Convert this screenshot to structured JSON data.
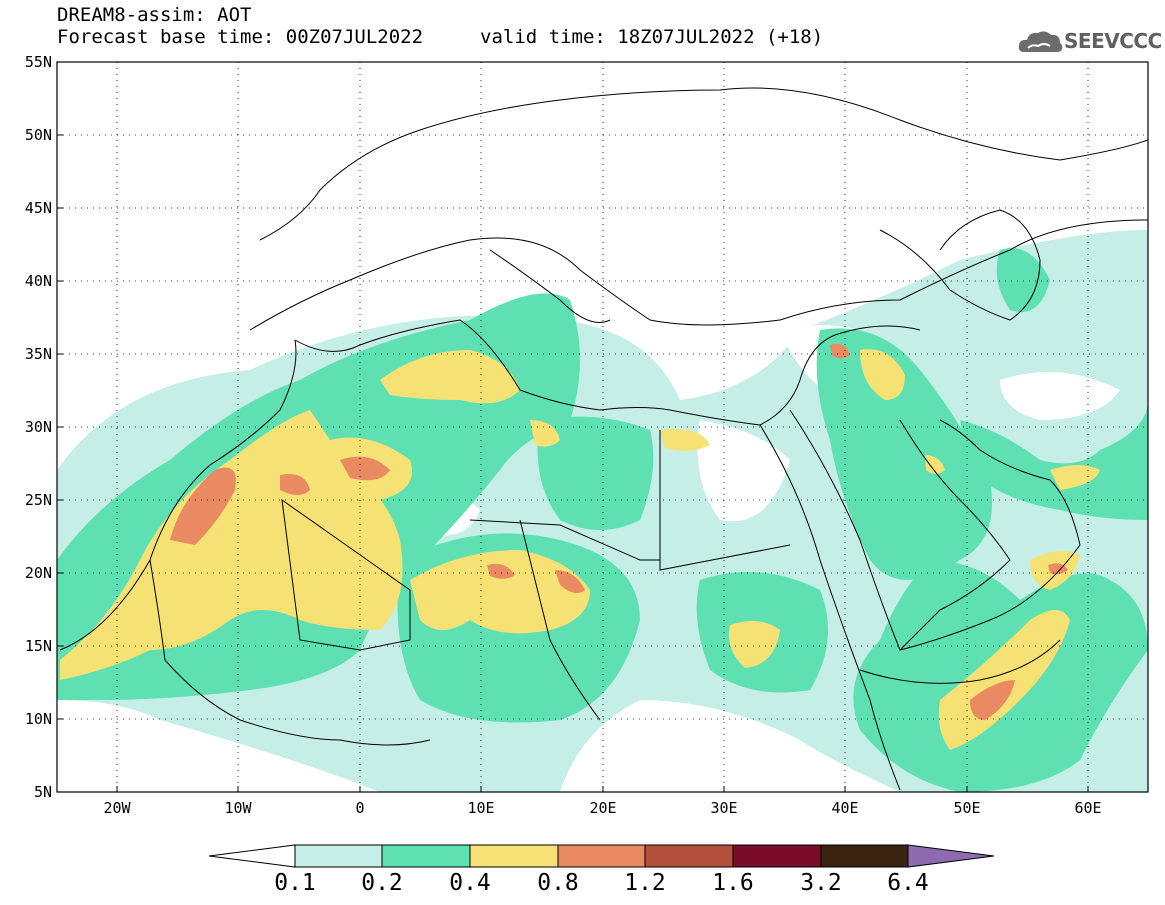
{
  "header": {
    "line1": "DREAM8-assim: AOT",
    "line2_left": "Forecast base time: 00Z07JUL2022",
    "line2_right": "valid time: 18Z07JUL2022 (+18)"
  },
  "logo": {
    "text": "SEEVCCC",
    "icon": "cloud-logo-icon"
  },
  "map": {
    "lon_range": [
      -25,
      65
    ],
    "lat_range": [
      5,
      55
    ],
    "lat_labels": [
      "55N",
      "50N",
      "45N",
      "40N",
      "35N",
      "30N",
      "25N",
      "20N",
      "15N",
      "10N",
      "5N"
    ],
    "lon_labels": [
      "20W",
      "10W",
      "0",
      "10E",
      "20E",
      "30E",
      "40E",
      "50E",
      "60E"
    ],
    "grid": "dotted"
  },
  "colorbar": {
    "levels": [
      "0.1",
      "0.2",
      "0.4",
      "0.8",
      "1.2",
      "1.6",
      "3.2",
      "6.4"
    ],
    "colors": [
      "#ffffff",
      "#c5eee6",
      "#5ee0b3",
      "#f6e274",
      "#ea8a63",
      "#b5503e",
      "#7a0c2a",
      "#3b2311",
      "#8e6bb0"
    ]
  }
}
